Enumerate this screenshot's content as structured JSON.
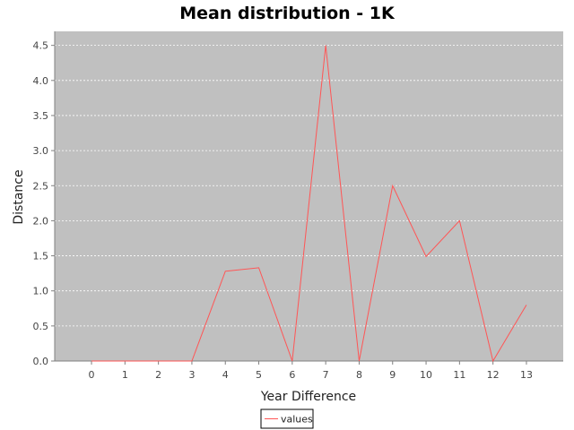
{
  "chart_data": {
    "type": "line",
    "title": "Mean distribution - 1K",
    "xlabel": "Year Difference",
    "ylabel": "Distance",
    "x": [
      0,
      1,
      2,
      3,
      4,
      5,
      6,
      7,
      8,
      9,
      10,
      11,
      12,
      13
    ],
    "xlim": [
      -1.1,
      14.1
    ],
    "ylim": [
      0,
      4.7
    ],
    "yticks": [
      0.0,
      0.5,
      1.0,
      1.5,
      2.0,
      2.5,
      3.0,
      3.5,
      4.0,
      4.5
    ],
    "ytick_labels": [
      "0.0",
      "0.5",
      "1.0",
      "1.5",
      "2.0",
      "2.5",
      "3.0",
      "3.5",
      "4.0",
      "4.5"
    ],
    "xtick_labels": [
      "0",
      "1",
      "2",
      "3",
      "4",
      "5",
      "6",
      "7",
      "8",
      "9",
      "10",
      "11",
      "12",
      "13"
    ],
    "grid": true,
    "legend_position": "bottom",
    "series": [
      {
        "name": "values",
        "color": "#ff5555",
        "values": [
          0,
          0,
          0,
          0,
          1.28,
          1.33,
          0,
          4.5,
          0,
          2.5,
          1.49,
          2.0,
          0,
          0.8
        ]
      }
    ],
    "colors": {
      "plot_background": "#c0c0c0",
      "gridline": "#ffffff",
      "axis": "#808080"
    }
  }
}
